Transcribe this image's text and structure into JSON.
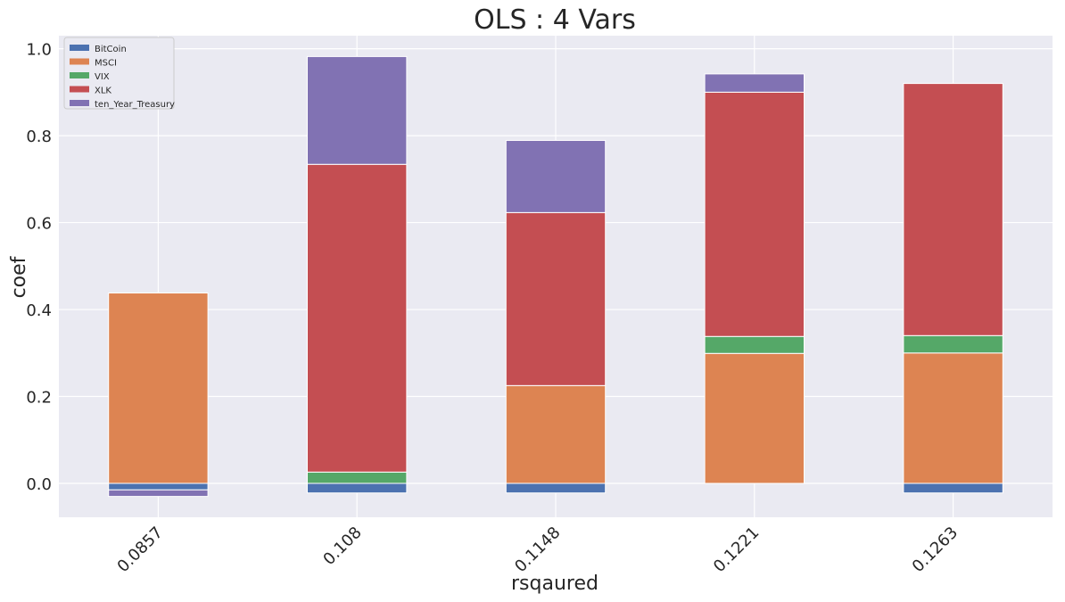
{
  "chart_data": {
    "type": "bar",
    "stacked": true,
    "title": "OLS : 4 Vars",
    "xlabel": "rsqaured",
    "ylabel": "coef",
    "categories": [
      "0.0857",
      "0.108",
      "0.1148",
      "0.1221",
      "0.1263"
    ],
    "ylim": [
      -0.078,
      1.03
    ],
    "yticks": [
      0.0,
      0.2,
      0.4,
      0.6,
      0.8,
      1.0
    ],
    "ytick_labels": [
      "0.0",
      "0.2",
      "0.4",
      "0.6",
      "0.8",
      "1.0"
    ],
    "grid": true,
    "legend_position": "top-left",
    "series": [
      {
        "name": "BitCoin",
        "color": "#4c72b0",
        "values": [
          -0.015,
          -0.022,
          -0.022,
          0.0,
          -0.022
        ]
      },
      {
        "name": "MSCI",
        "color": "#dd8452",
        "values": [
          0.438,
          0.0,
          0.225,
          0.299,
          0.3
        ]
      },
      {
        "name": "VIX",
        "color": "#55a868",
        "values": [
          0.0,
          0.026,
          0.0,
          0.039,
          0.04
        ]
      },
      {
        "name": "XLK",
        "color": "#c44e52",
        "values": [
          0.0,
          0.708,
          0.398,
          0.562,
          0.58
        ]
      },
      {
        "name": "ten_Year_Treasury",
        "color": "#8172b3",
        "values": [
          -0.015,
          0.248,
          0.166,
          0.042,
          0.0
        ]
      }
    ]
  },
  "colors": {
    "plot_background": "#eaeaf2",
    "grid": "#ffffff"
  }
}
